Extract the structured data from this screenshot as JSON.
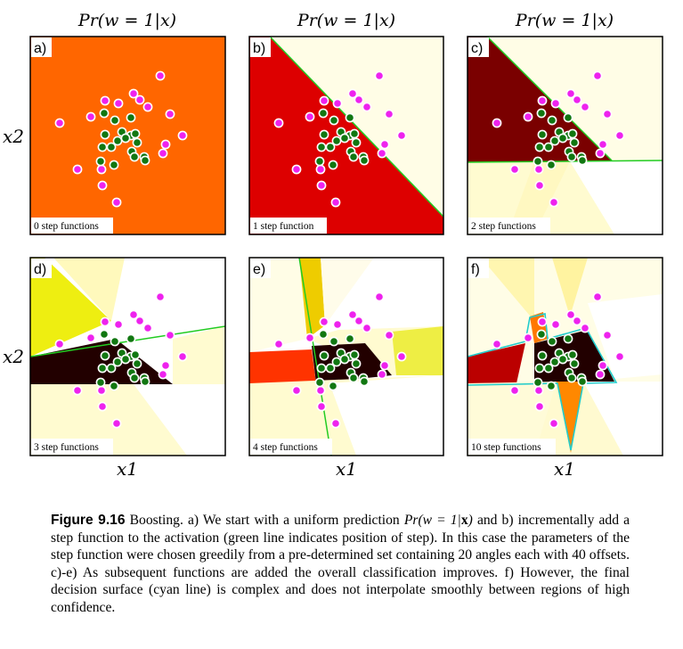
{
  "panel_title": "Pr(w = 1|x)",
  "axis": {
    "x1": "x1",
    "x2": "x2"
  },
  "panels": [
    {
      "letter": "a)",
      "step_label": "0 step functions"
    },
    {
      "letter": "b)",
      "step_label": "1 step function"
    },
    {
      "letter": "c)",
      "step_label": "2 step functions"
    },
    {
      "letter": "d)",
      "step_label": "3 step functions"
    },
    {
      "letter": "e)",
      "step_label": "4 step functions"
    },
    {
      "letter": "f)",
      "step_label": "10 step functions"
    }
  ],
  "caption": {
    "label": "Figure 9.16",
    "t1": " Boosting. a) We start with a uniform prediction ",
    "math_pre": "Pr(w = 1|",
    "math_x": "x",
    "math_post": ")",
    "t2": " and b) incrementally add a step function to the activation (green line indicates position of step). In this case the parameters of the step function were chosen greedily from a pre-determined set containing 20 angles each with 40 offsets. c)-e) As subsequent functions are added the overall classification improves. f) However, the final decision surface (cyan line) is complex and does not interpolate smoothly between regions of high confidence."
  },
  "colors": {
    "class0_points": "#ee22ee",
    "class1_points": "#117711",
    "step_line": "#22cc22",
    "decision_surface": "#22cccc",
    "uniform_prediction": "#ff6600"
  }
}
